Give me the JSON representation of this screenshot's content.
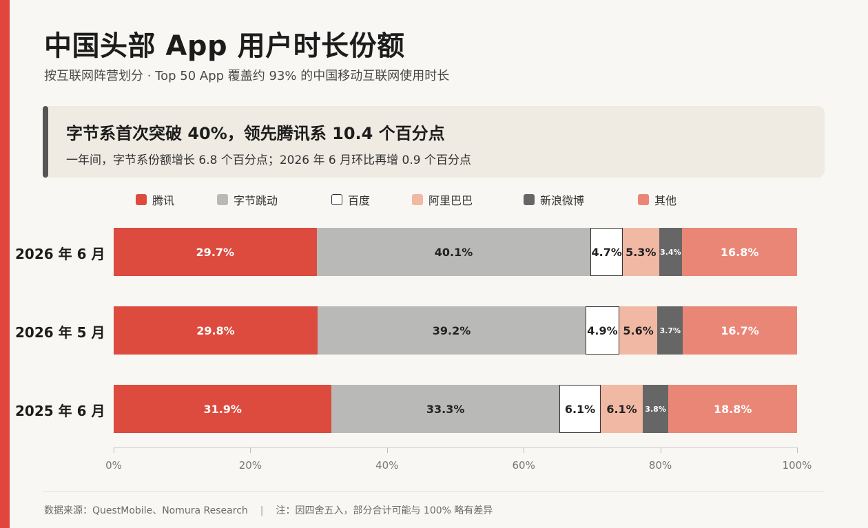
{
  "title": "中国头部 App 用户时长份额",
  "subtitle": "按互联网阵营划分 · Top 50 App 覆盖约 93% 的中国移动互联网使用时长",
  "callout": {
    "headline": "字节系首次突破 40%，领先腾讯系 10.4 个百分点",
    "sub": "一年间，字节系份额增长 6.8 个百分点；2026 年 6 月环比再增 0.9 个百分点"
  },
  "footer": {
    "source": "数据来源：QuestMobile、Nomura Research",
    "separator": "|",
    "note": "注：因四舍五入，部分合计可能与 100% 略有差异"
  },
  "chart_data": {
    "type": "bar",
    "orientation": "horizontal",
    "stacked": true,
    "categories": [
      "2026 年 6 月",
      "2026 年 5 月",
      "2025 年 6 月"
    ],
    "series": [
      {
        "name": "腾讯",
        "color": "#dd4a3e",
        "text_color": "#ffffff",
        "values": [
          29.7,
          29.8,
          31.9
        ]
      },
      {
        "name": "字节跳动",
        "color": "#b9b9b7",
        "text_color": "#222222",
        "values": [
          40.1,
          39.2,
          33.3
        ]
      },
      {
        "name": "百度",
        "color": "#ffffff",
        "border": "#333333",
        "text_color": "#222222",
        "values": [
          4.7,
          4.9,
          6.1
        ]
      },
      {
        "name": "阿里巴巴",
        "color": "#f1b8a4",
        "text_color": "#222222",
        "values": [
          5.3,
          5.6,
          6.1
        ]
      },
      {
        "name": "新浪微博",
        "color": "#666666",
        "text_color": "#ffffff",
        "values": [
          3.4,
          3.7,
          3.8
        ]
      },
      {
        "name": "其他",
        "color": "#ea8676",
        "text_color": "#ffffff",
        "values": [
          16.8,
          16.7,
          18.8
        ]
      }
    ],
    "xlim": [
      0,
      100
    ],
    "xticks": [
      "0%",
      "20%",
      "40%",
      "60%",
      "80%",
      "100%"
    ],
    "legend_position": "top",
    "data_labels": true,
    "grid": false
  }
}
